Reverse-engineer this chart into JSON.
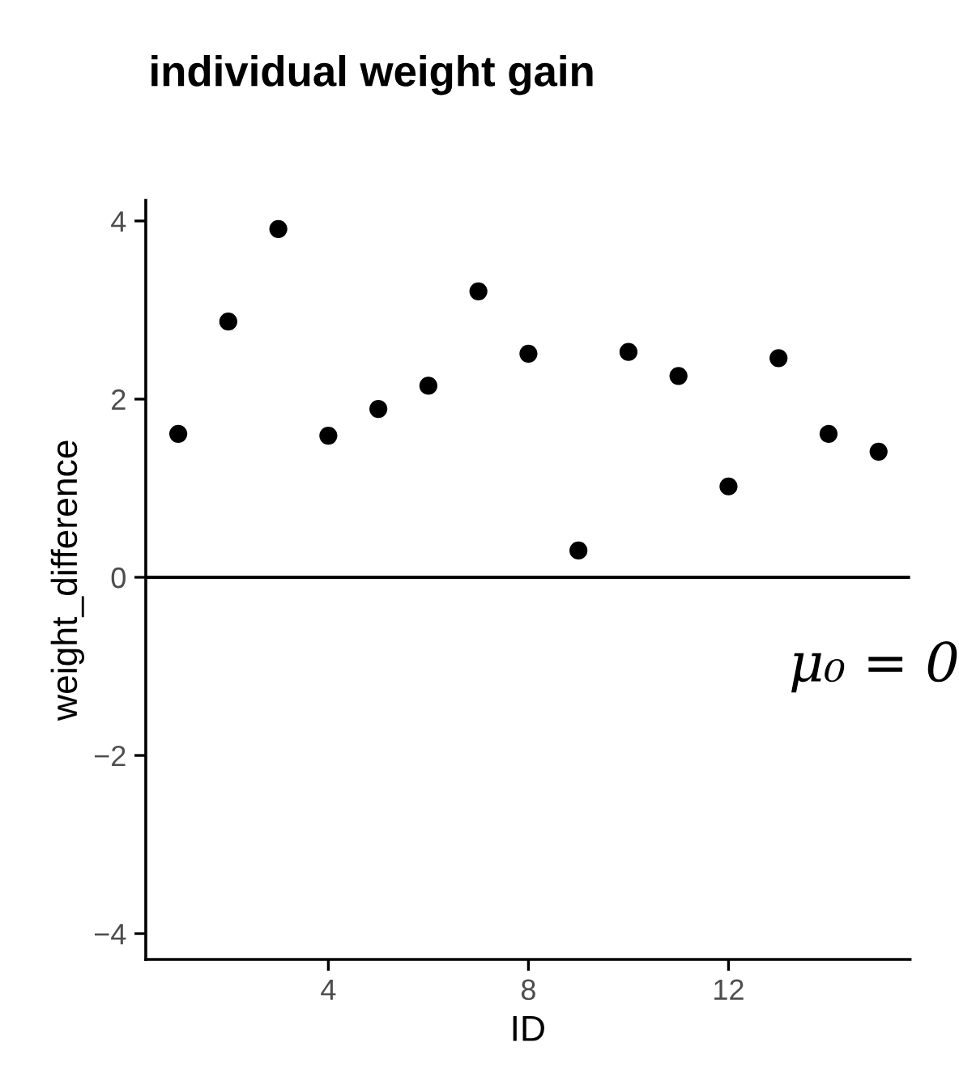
{
  "chart_data": {
    "type": "scatter",
    "title": "individual weight gain",
    "xlabel": "ID",
    "ylabel": "weight_difference",
    "x": [
      1,
      2,
      3,
      4,
      5,
      6,
      7,
      8,
      9,
      10,
      11,
      12,
      13,
      14,
      15
    ],
    "series": [
      {
        "color": "#000000",
        "values": [
          1.61,
          2.87,
          3.91,
          1.59,
          1.89,
          2.15,
          3.21,
          2.51,
          0.3,
          2.53,
          2.26,
          1.02,
          2.46,
          1.61,
          1.41
        ]
      }
    ],
    "xlim": [
      0.35,
      15.63
    ],
    "ylim": [
      -4.29,
      4.23
    ],
    "xticks": [
      4,
      8,
      12
    ],
    "yticks": [
      {
        "value": -4,
        "label": "−4"
      },
      {
        "value": -2,
        "label": "−2"
      },
      0,
      2,
      4
    ],
    "ref_lines": [
      {
        "axis": "y",
        "value": 0,
        "label": "μ₀ = 0",
        "color": "#000000",
        "line_style": "solid"
      }
    ],
    "marker": "circle",
    "grid": false,
    "legend": false
  }
}
